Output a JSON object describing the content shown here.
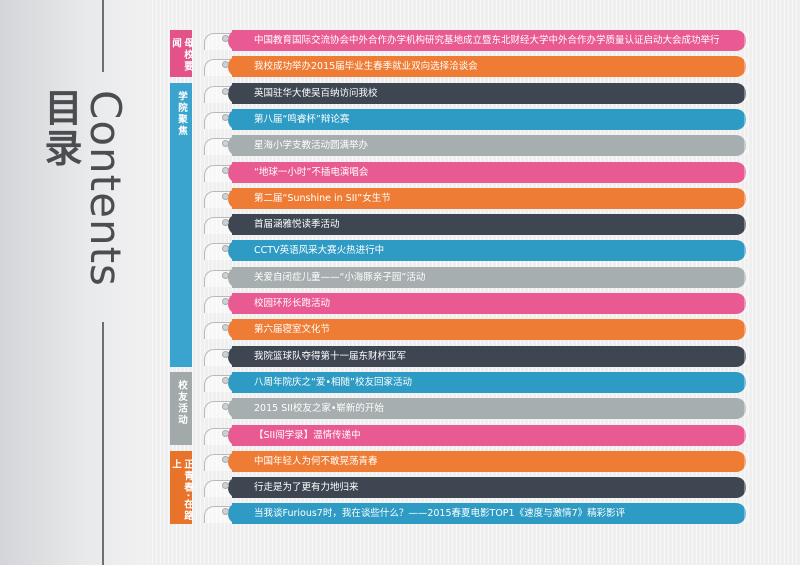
{
  "title": {
    "zh": "目录",
    "en": "Contents"
  },
  "colors": {
    "pink": "#e95a93",
    "orange": "#ef7c34",
    "dark": "#3e4652",
    "blue": "#2d9bc4",
    "gray": "#a6aeaf",
    "section_pink": "#e3538a",
    "section_blue": "#3aa4cf",
    "section_gray": "#a1a9aa",
    "section_orange": "#e8732b"
  },
  "sections": [
    {
      "label": "母校要闻",
      "color": "section_pink"
    },
    {
      "label": "学院聚焦",
      "color": "section_blue"
    },
    {
      "label": "校友活动",
      "color": "section_gray"
    },
    {
      "label": "正青春·在路上",
      "color": "section_orange"
    }
  ],
  "items": [
    {
      "text": "中国教育国际交流协会中外合作办学机构研究基地成立暨东北财经大学中外合作办学质量认证启动大会成功举行",
      "color": "pink"
    },
    {
      "text": "我校成功举办2015届毕业生春季就业双向选择洽谈会",
      "color": "orange"
    },
    {
      "text": "英国驻华大使吴百纳访问我校",
      "color": "dark"
    },
    {
      "text": "第八届“鸣睿杯”辩论赛",
      "color": "blue"
    },
    {
      "text": "星海小学支教活动圆满举办",
      "color": "gray"
    },
    {
      "text": "“地球一小时”不插电演唱会",
      "color": "pink"
    },
    {
      "text": "第二届“Sunshine in SII”女生节",
      "color": "orange"
    },
    {
      "text": "首届涵雅悦读季活动",
      "color": "dark"
    },
    {
      "text": "CCTV英语风采大赛火热进行中",
      "color": "blue"
    },
    {
      "text": "关爱自闭症儿童——“小海豚亲子园”活动",
      "color": "gray"
    },
    {
      "text": "校园环形长跑活动",
      "color": "pink"
    },
    {
      "text": "第六届寝室文化节",
      "color": "orange"
    },
    {
      "text": "我院篮球队夺得第十一届东财杯亚军",
      "color": "dark"
    },
    {
      "text": "八周年院庆之“爱•相随”校友回家活动",
      "color": "blue"
    },
    {
      "text": "2015 SII校友之家•崭新的开始",
      "color": "gray"
    },
    {
      "text": "【SII闯学录】温情传递中",
      "color": "pink"
    },
    {
      "text": "中国年轻人为何不敢晃荡青春",
      "color": "orange"
    },
    {
      "text": "行走是为了更有力地归来",
      "color": "dark"
    },
    {
      "text": "当我谈Furious7时，我在谈些什么？——2015春夏电影TOP1《速度与激情7》精彩影评",
      "color": "blue"
    }
  ]
}
